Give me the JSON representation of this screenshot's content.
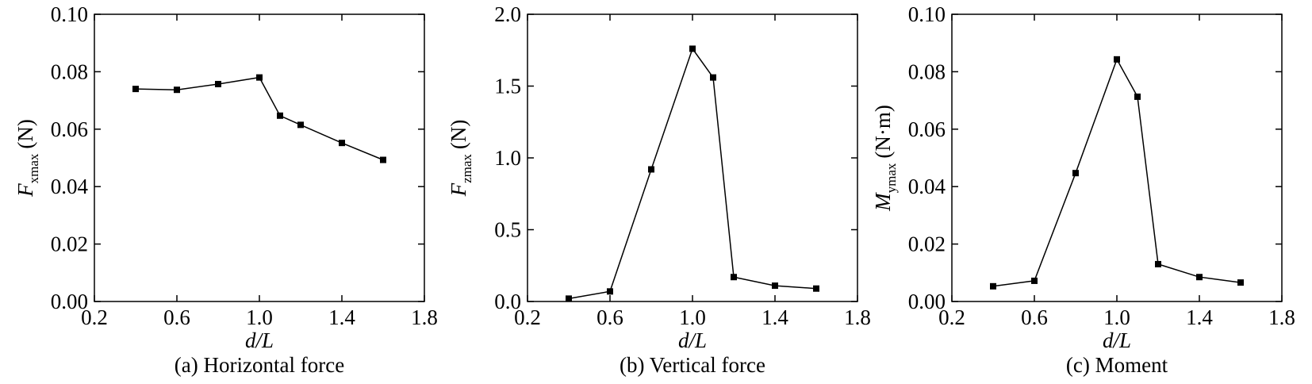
{
  "chart_data": [
    {
      "type": "line",
      "caption": "(a) Horizontal force",
      "xlabel": "d/L",
      "ylabel": {
        "symbol": "F",
        "subscript": "xmax",
        "unit": "(N)"
      },
      "x": [
        0.4,
        0.6,
        0.8,
        1.0,
        1.1,
        1.2,
        1.4,
        1.6
      ],
      "values": [
        0.074,
        0.0737,
        0.0757,
        0.078,
        0.0647,
        0.0615,
        0.0552,
        0.0493
      ],
      "color": "#000000",
      "xlim": [
        0.2,
        1.8
      ],
      "xticks": [
        0.2,
        0.6,
        {
          "value": 1.0,
          "label": "1.0"
        },
        1.4,
        1.8
      ],
      "ylim": [
        0,
        0.1
      ],
      "yticks": [
        {
          "value": 0,
          "label": "0.00"
        },
        0.02,
        0.04,
        0.06,
        0.08,
        {
          "value": 0.1,
          "label": "0.10"
        }
      ]
    },
    {
      "type": "line",
      "caption": "(b) Vertical force",
      "xlabel": "d/L",
      "ylabel": {
        "symbol": "F",
        "subscript": "zmax",
        "unit": "(N)"
      },
      "x": [
        0.4,
        0.6,
        0.8,
        1.0,
        1.1,
        1.2,
        1.4,
        1.6
      ],
      "values": [
        0.02,
        0.07,
        0.92,
        1.76,
        1.56,
        0.17,
        0.11,
        0.09
      ],
      "color": "#000000",
      "xlim": [
        0.2,
        1.8
      ],
      "xticks": [
        0.2,
        0.6,
        {
          "value": 1.0,
          "label": "1.0"
        },
        1.4,
        1.8
      ],
      "ylim": [
        0,
        2
      ],
      "yticks": [
        {
          "value": 0,
          "label": "0.0"
        },
        0.5,
        {
          "value": 1,
          "label": "1.0"
        },
        1.5,
        {
          "value": 2,
          "label": "2.0"
        }
      ]
    },
    {
      "type": "line",
      "caption": "(c) Moment",
      "xlabel": "d/L",
      "ylabel": {
        "symbol": "M",
        "subscript": "ymax",
        "unit": "(N·m)"
      },
      "x": [
        0.4,
        0.6,
        0.8,
        1.0,
        1.1,
        1.2,
        1.4,
        1.6
      ],
      "values": [
        0.0053,
        0.0072,
        0.0447,
        0.0843,
        0.0713,
        0.013,
        0.0085,
        0.0066
      ],
      "color": "#000000",
      "xlim": [
        0.2,
        1.8
      ],
      "xticks": [
        0.2,
        0.6,
        {
          "value": 1.0,
          "label": "1.0"
        },
        1.4,
        1.8
      ],
      "ylim": [
        0,
        0.1
      ],
      "yticks": [
        {
          "value": 0,
          "label": "0.00"
        },
        0.02,
        0.04,
        0.06,
        0.08,
        {
          "value": 0.1,
          "label": "0.10"
        }
      ]
    }
  ]
}
